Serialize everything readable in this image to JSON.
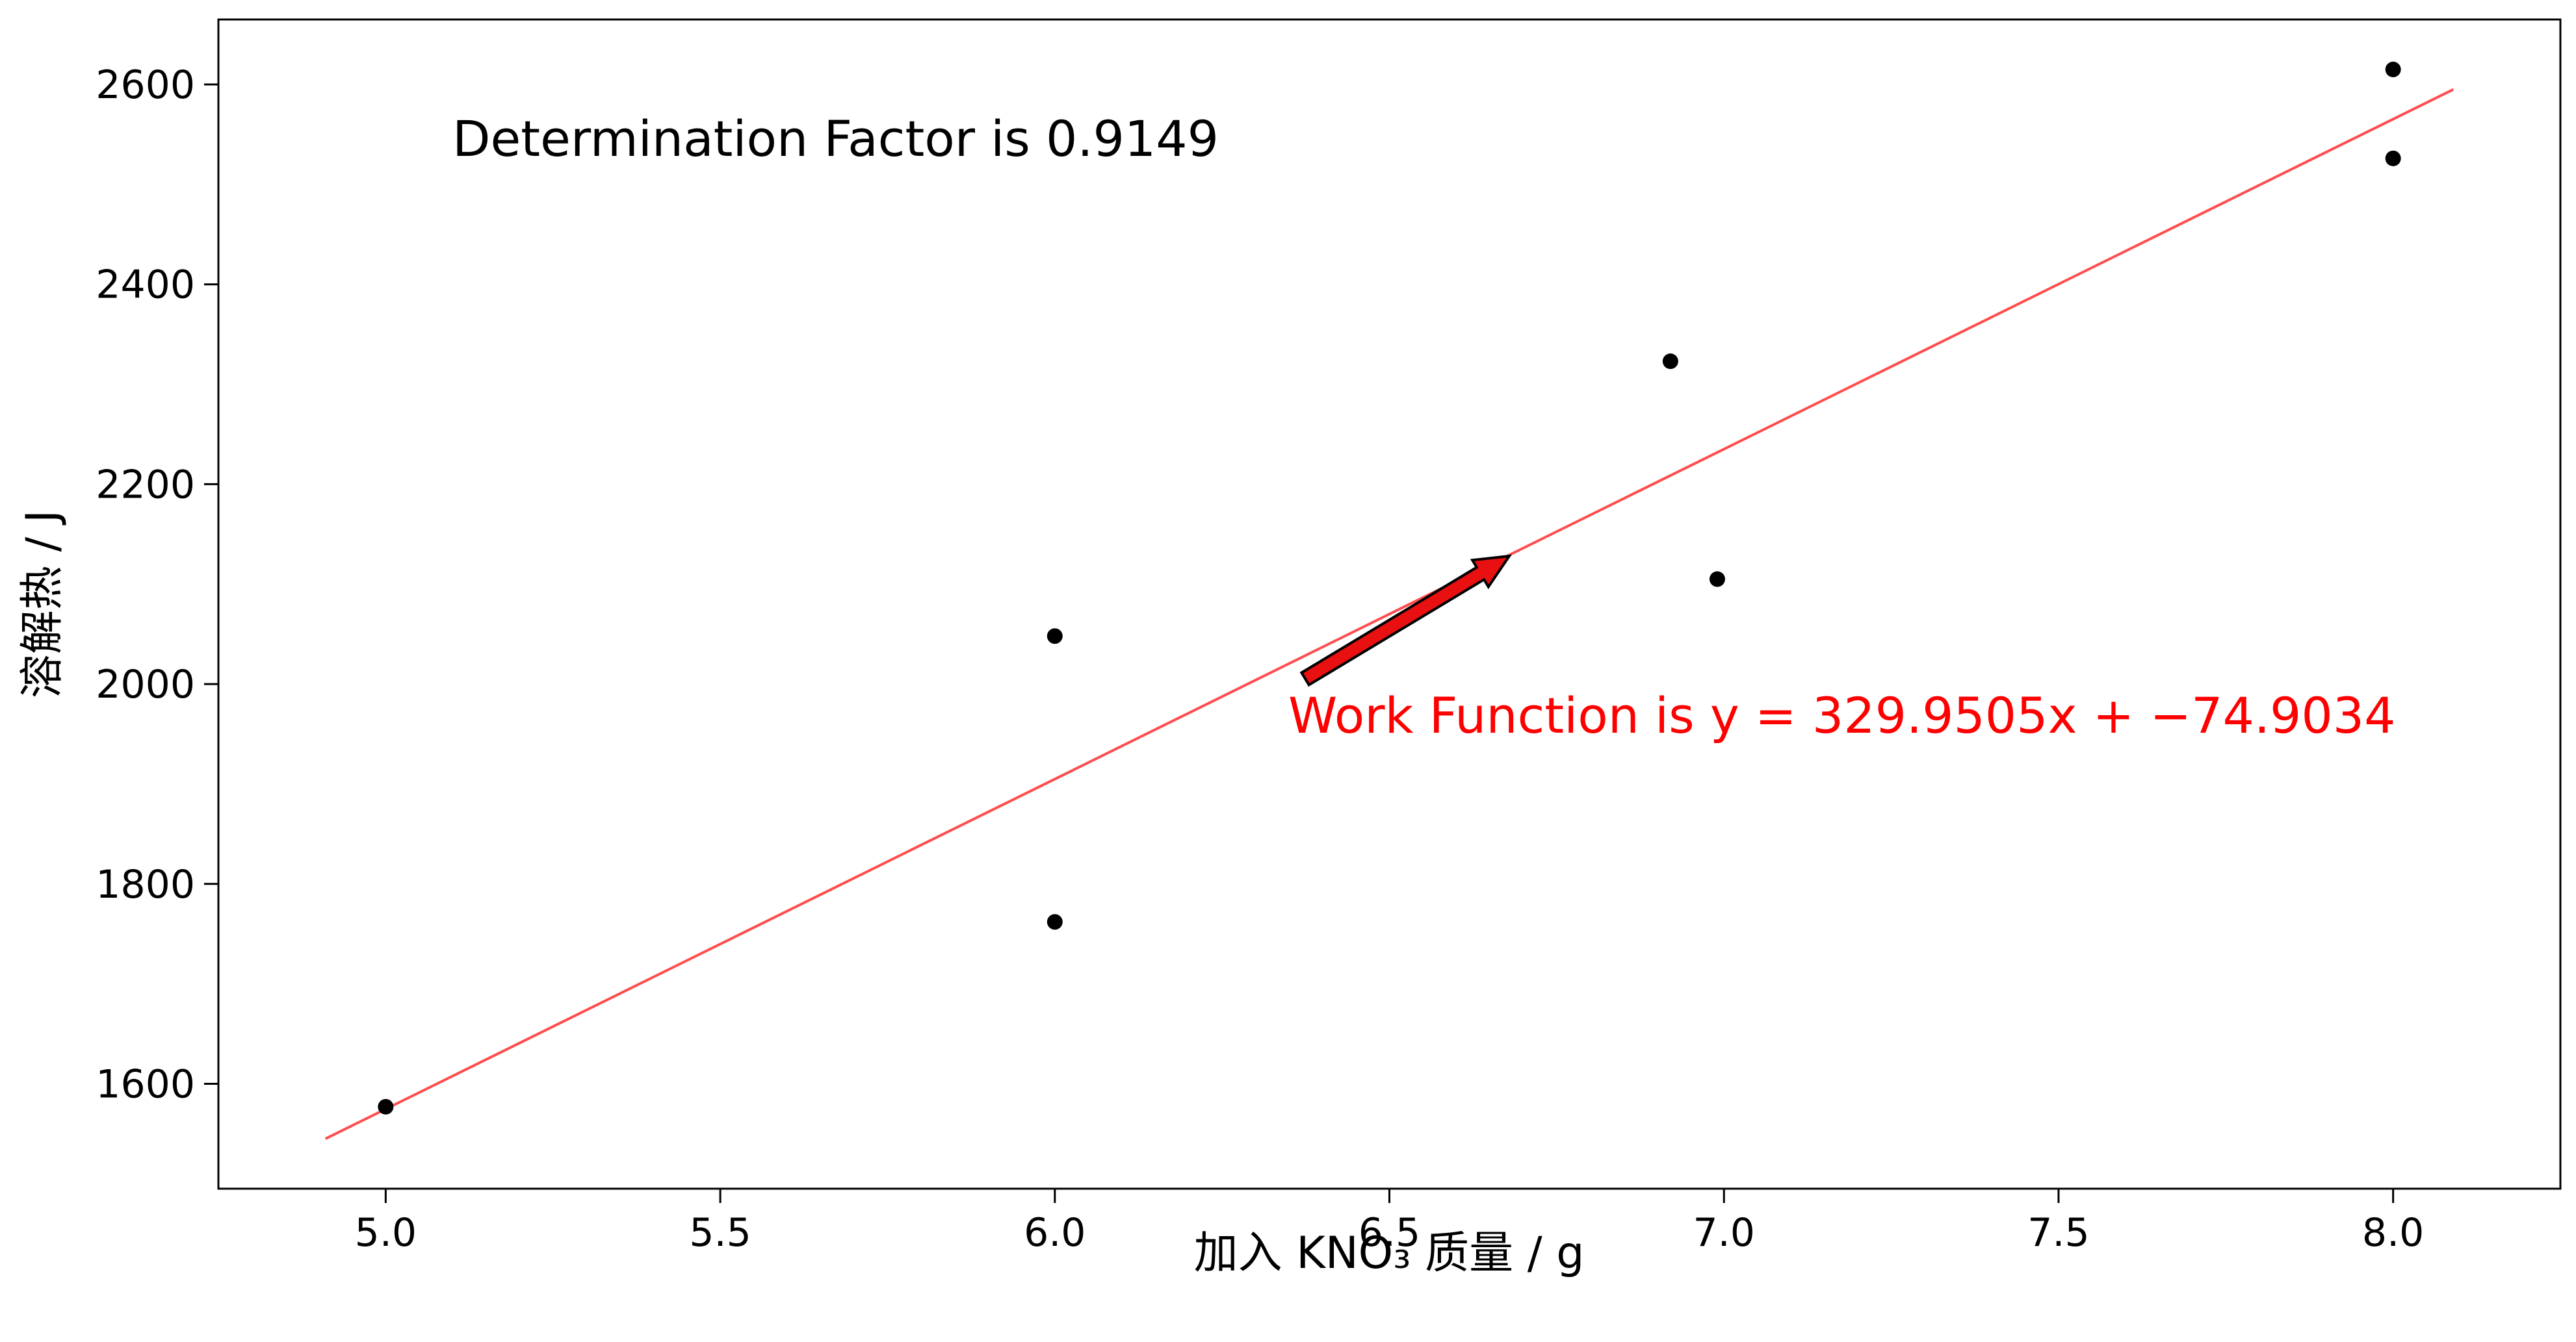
{
  "chart_data": {
    "type": "scatter",
    "title": "",
    "xlabel": "加入 KNO₃ 质量 / g",
    "ylabel": "溶解热 / J",
    "xlim": [
      4.75,
      8.25
    ],
    "ylim": [
      1495,
      2665
    ],
    "xticks": [
      "5.0",
      "5.5",
      "6.0",
      "6.5",
      "7.0",
      "7.5",
      "8.0"
    ],
    "yticks": [
      "1600",
      "1800",
      "2000",
      "2200",
      "2400",
      "2600"
    ],
    "grid": false,
    "legend": "none",
    "points": {
      "x": [
        5.0,
        6.0,
        6.0,
        6.92,
        6.99,
        8.0,
        8.0
      ],
      "y": [
        1577,
        2048,
        1762,
        2323,
        2105,
        2526,
        2615
      ],
      "color": "#000000"
    },
    "fit_line": {
      "x": [
        4.91,
        8.09
      ],
      "y": [
        1545,
        2595
      ],
      "color": "#ff4d4d"
    },
    "annotations": {
      "determination": "Determination Factor is 0.9149",
      "work_function": "Work Function is y = 329.9505x + −74.9034",
      "arrow_color": "#e81010",
      "text_color": "#ff0000"
    }
  }
}
